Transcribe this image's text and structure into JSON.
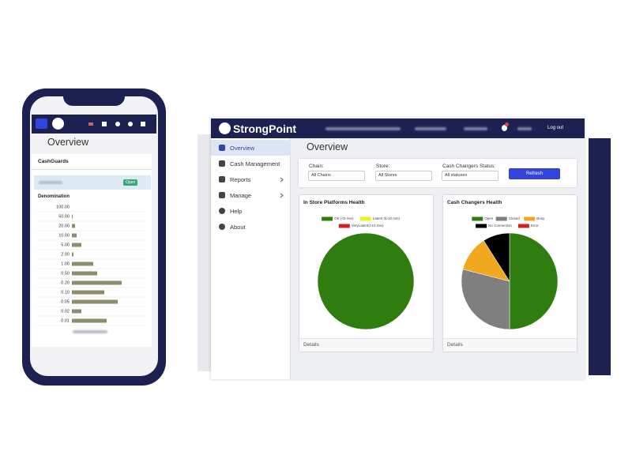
{
  "mobile": {
    "title": "Overview",
    "section": "CashGuards",
    "status": "Open",
    "column": "Denomination"
  },
  "desktop": {
    "brand": "StrongPoint",
    "logout": "Log out",
    "menu": [
      "Overview",
      "Cash Management",
      "Reports",
      "Manage",
      "Help",
      "About"
    ],
    "page_title": "Overview",
    "filters": [
      {
        "label": "Chain:",
        "value": "All Chains"
      },
      {
        "label": "Store:",
        "value": "All Stores"
      },
      {
        "label": "Cash Changers Status:",
        "value": "All statuses"
      }
    ],
    "refresh": "Refresh",
    "panels": [
      {
        "title": "In Store Platforms Health",
        "footer": "Details"
      },
      {
        "title": "Cash Changers Health",
        "footer": "Details"
      }
    ]
  },
  "chart_data": [
    {
      "type": "hbar",
      "categories": [
        "100.00",
        "50.00",
        "20.00",
        "10.00",
        "5.00",
        "2.00",
        "1.00",
        "0.50",
        "0.20",
        "0.10",
        "0.05",
        "0.02",
        "0.01"
      ],
      "values": [
        0,
        1,
        4,
        6,
        12,
        2,
        27,
        32,
        63,
        41,
        58,
        12,
        44
      ],
      "color": "#8c8c6e"
    },
    {
      "type": "pie",
      "categories": [
        "OK (<5 min)",
        "Latent (5-10 min)",
        "VeryLatent(>10 min)"
      ],
      "values": [
        100,
        0,
        0
      ],
      "colors": [
        "#2e7d0e",
        "#f0f020",
        "#d32020"
      ]
    },
    {
      "type": "pie",
      "categories": [
        "Open",
        "Closed",
        "Busy",
        "No Connection",
        "Error"
      ],
      "values": [
        50,
        29,
        12,
        9,
        0
      ],
      "colors": [
        "#2e7d0e",
        "#7f7f7f",
        "#f0a820",
        "#000000",
        "#d32020"
      ]
    }
  ]
}
